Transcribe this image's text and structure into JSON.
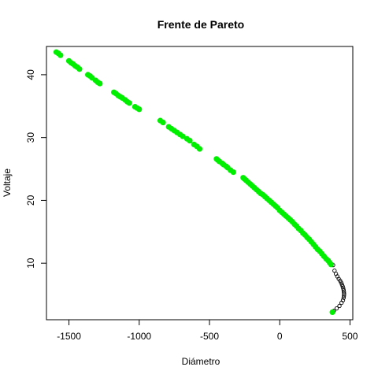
{
  "chart_data": {
    "type": "scatter",
    "title": "Frente de Pareto",
    "xlabel": "Diámetro",
    "ylabel": "Voltaje",
    "xlim": [
      -1660,
      520
    ],
    "ylim": [
      1.0,
      44.5
    ],
    "xticks": [
      -1500,
      -1000,
      -500,
      0,
      500
    ],
    "yticks": [
      10,
      20,
      30,
      40
    ],
    "xtick_labels": [
      "-1500",
      "-1000",
      "-500",
      "0",
      "500"
    ],
    "ytick_labels": [
      "10",
      "20",
      "30",
      "40"
    ],
    "grid": false,
    "legend": "none",
    "colors": {
      "pareto": "#00ee00",
      "dominated": "#000000"
    },
    "series": [
      {
        "marker": "filled-circle",
        "x": [
          -1590,
          -1575,
          -1560,
          -1500,
          -1485,
          -1470,
          -1455,
          -1440,
          -1425,
          -1365,
          -1350,
          -1335,
          -1310,
          -1295,
          -1280,
          -1180,
          -1165,
          -1150,
          -1135,
          -1120,
          -1100,
          -1085,
          -1070,
          -1030,
          -1015,
          -1000,
          -850,
          -830,
          -790,
          -770,
          -750,
          -730,
          -710,
          -690,
          -660,
          -640,
          -610,
          -590,
          -570,
          -450,
          -440,
          -430,
          -410,
          -400,
          -380,
          -370,
          -350,
          -330,
          -260,
          -250,
          -240,
          -225,
          -210,
          -195,
          -180,
          -165,
          -150,
          -135,
          -120,
          -105,
          -90,
          -75,
          -60,
          -45,
          -30,
          -15,
          0,
          15,
          30,
          45,
          60,
          75,
          90,
          105,
          120,
          135,
          150,
          165,
          180,
          195,
          210,
          225,
          240,
          255,
          270,
          285,
          300,
          315,
          330,
          345,
          355,
          365,
          375
        ],
        "y": [
          43.6,
          43.4,
          43.1,
          42.2,
          41.9,
          41.7,
          41.4,
          41.2,
          40.9,
          40.0,
          39.8,
          39.5,
          39.1,
          38.8,
          38.6,
          37.2,
          37.0,
          36.7,
          36.5,
          36.3,
          36.0,
          35.7,
          35.5,
          34.9,
          34.7,
          34.5,
          32.7,
          32.4,
          31.7,
          31.4,
          31.1,
          30.8,
          30.5,
          30.2,
          29.8,
          29.5,
          28.9,
          28.6,
          28.2,
          26.6,
          26.4,
          26.2,
          25.9,
          25.7,
          25.4,
          25.2,
          24.8,
          24.5,
          23.6,
          23.4,
          23.2,
          22.9,
          22.6,
          22.3,
          22.0,
          21.7,
          21.4,
          21.1,
          20.9,
          20.6,
          20.3,
          20.0,
          19.7,
          19.4,
          19.1,
          18.8,
          18.4,
          18.1,
          17.8,
          17.5,
          17.2,
          16.9,
          16.6,
          16.2,
          15.9,
          15.5,
          15.2,
          14.8,
          14.5,
          14.1,
          13.8,
          13.4,
          13.0,
          12.6,
          12.2,
          11.9,
          11.5,
          11.1,
          10.7,
          10.4,
          10.1,
          9.8,
          2.2
        ]
      },
      {
        "marker": "open-circle",
        "x": [
          380,
          390,
          400,
          410,
          420,
          430,
          437,
          443,
          448,
          452,
          455,
          457,
          458,
          457,
          455,
          450,
          440,
          425,
          405,
          385
        ],
        "y": [
          9.7,
          8.8,
          8.3,
          7.9,
          7.5,
          7.2,
          6.9,
          6.6,
          6.3,
          6.0,
          5.7,
          5.4,
          5.1,
          4.8,
          4.5,
          4.1,
          3.7,
          3.2,
          2.8,
          2.4
        ]
      }
    ]
  }
}
